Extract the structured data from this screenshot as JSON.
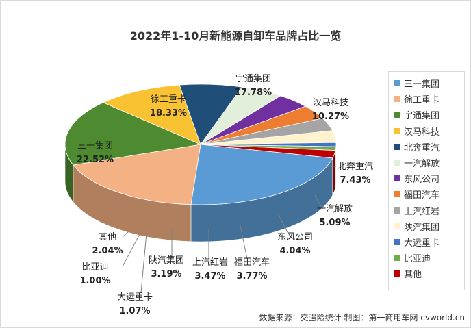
{
  "chart_data": {
    "type": "pie",
    "title": "2022年1-10月新能源自卸车品牌占比一览",
    "source": "数据来源：交强险统计 制图：第一商用车网 cvworld.cn",
    "unit": "%",
    "legend_position": "right",
    "slices": [
      {
        "name": "三一集团",
        "value": 22.52,
        "label": "22.52%",
        "color": "#5b9bd5"
      },
      {
        "name": "徐工重卡",
        "value": 18.33,
        "label": "18.33%",
        "color": "#f4b183"
      },
      {
        "name": "宇通集团",
        "value": 17.78,
        "label": "17.78%",
        "color": "#4e8a2f"
      },
      {
        "name": "汉马科技",
        "value": 10.27,
        "label": "10.27%",
        "color": "#f9c232"
      },
      {
        "name": "北奔重汽",
        "value": 7.43,
        "label": "7.43%",
        "color": "#1f4e79"
      },
      {
        "name": "一汽解放",
        "value": 5.09,
        "label": "5.09%",
        "color": "#e2efda"
      },
      {
        "name": "东风公司",
        "value": 4.04,
        "label": "4.04%",
        "color": "#7030a0"
      },
      {
        "name": "福田汽车",
        "value": 3.77,
        "label": "3.77%",
        "color": "#ed7d31"
      },
      {
        "name": "上汽红岩",
        "value": 3.47,
        "label": "3.47%",
        "color": "#a5a5a5"
      },
      {
        "name": "陕汽集团",
        "value": 3.19,
        "label": "3.19%",
        "color": "#fff2cc"
      },
      {
        "name": "大运重卡",
        "value": 1.07,
        "label": "1.07%",
        "color": "#4472c4"
      },
      {
        "name": "比亚迪",
        "value": 1.0,
        "label": "1.00%",
        "color": "#70ad47"
      },
      {
        "name": "其他",
        "value": 2.04,
        "label": "2.04%",
        "color": "#c00000"
      }
    ]
  }
}
